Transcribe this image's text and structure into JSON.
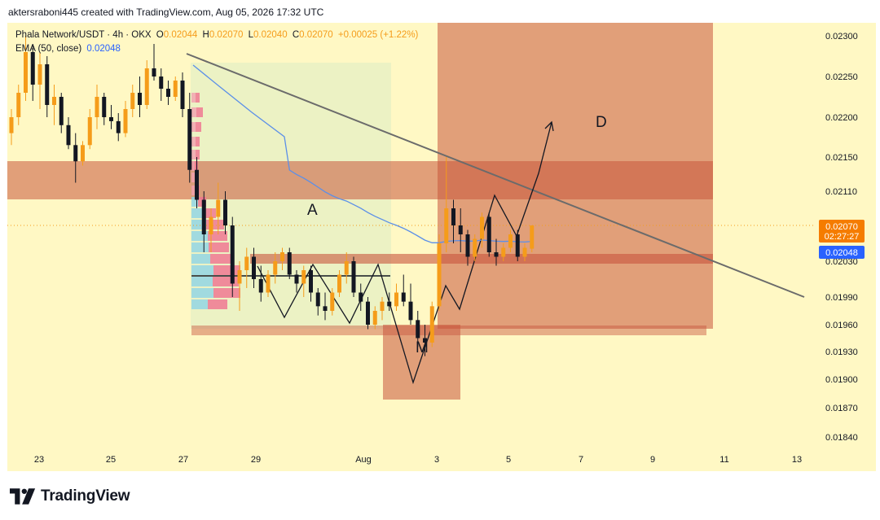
{
  "header": {
    "attribution": "aktersraboni445 created with TradingView.com, Aug 05, 2026 17:32 UTC"
  },
  "legend": {
    "symbol": "Phala Network/USDT · 4h · OKX",
    "o_label": "O",
    "o_value": "0.02044",
    "h_label": "H",
    "h_value": "0.02070",
    "l_label": "L",
    "l_value": "0.02040",
    "c_label": "C",
    "c_value": "0.02070",
    "change": "+0.00025 (+1.22%)",
    "ema_label": "EMA (50, close)",
    "ema_value": "0.02048"
  },
  "footer": {
    "brand": "TradingView"
  },
  "colors": {
    "background": "#fff8c4",
    "up": "#f59c1a",
    "down": "#131722",
    "ema": "#5b8fe8",
    "zone": "#c8553d",
    "price_tag": "#f57c00",
    "ema_tag": "#2962ff"
  },
  "chart_data": {
    "type": "candlestick",
    "y_ticks": [
      "0.02300",
      "0.02250",
      "0.02200",
      "0.02150",
      "0.02110",
      "0.02070",
      "0.02030",
      "0.01990",
      "0.01960",
      "0.01930",
      "0.01900",
      "0.01870",
      "0.01840"
    ],
    "x_ticks": [
      "23",
      "25",
      "27",
      "29",
      "Aug",
      "3",
      "5",
      "7",
      "9",
      "11",
      "13"
    ],
    "last_price": "0.02070",
    "countdown": "02:27:27",
    "ema_last": "0.02048",
    "annotations": [
      "A",
      "M",
      "D"
    ],
    "series": [
      {
        "name": "PHA/USDT 4h",
        "candles": [
          {
            "o": 0.0218,
            "h": 0.0221,
            "l": 0.02165,
            "c": 0.022
          },
          {
            "o": 0.022,
            "h": 0.0224,
            "l": 0.0219,
            "c": 0.0223
          },
          {
            "o": 0.0223,
            "h": 0.023,
            "l": 0.0222,
            "c": 0.0228
          },
          {
            "o": 0.0228,
            "h": 0.0229,
            "l": 0.0222,
            "c": 0.0224
          },
          {
            "o": 0.0224,
            "h": 0.0228,
            "l": 0.0221,
            "c": 0.02265
          },
          {
            "o": 0.02265,
            "h": 0.02275,
            "l": 0.022,
            "c": 0.02215
          },
          {
            "o": 0.02215,
            "h": 0.0224,
            "l": 0.0219,
            "c": 0.02225
          },
          {
            "o": 0.02225,
            "h": 0.0223,
            "l": 0.0218,
            "c": 0.0219
          },
          {
            "o": 0.0219,
            "h": 0.022,
            "l": 0.0216,
            "c": 0.02165
          },
          {
            "o": 0.02165,
            "h": 0.0218,
            "l": 0.0212,
            "c": 0.02145
          },
          {
            "o": 0.02145,
            "h": 0.0217,
            "l": 0.0214,
            "c": 0.02165
          },
          {
            "o": 0.02165,
            "h": 0.0221,
            "l": 0.0216,
            "c": 0.022
          },
          {
            "o": 0.022,
            "h": 0.0224,
            "l": 0.02185,
            "c": 0.02225
          },
          {
            "o": 0.02225,
            "h": 0.0223,
            "l": 0.0219,
            "c": 0.022
          },
          {
            "o": 0.022,
            "h": 0.02215,
            "l": 0.02185,
            "c": 0.02195
          },
          {
            "o": 0.02195,
            "h": 0.02205,
            "l": 0.0217,
            "c": 0.0218
          },
          {
            "o": 0.0218,
            "h": 0.0222,
            "l": 0.02175,
            "c": 0.0221
          },
          {
            "o": 0.0221,
            "h": 0.0224,
            "l": 0.022,
            "c": 0.0223
          },
          {
            "o": 0.0223,
            "h": 0.0225,
            "l": 0.022,
            "c": 0.02215
          },
          {
            "o": 0.02215,
            "h": 0.0227,
            "l": 0.0221,
            "c": 0.0226
          },
          {
            "o": 0.0226,
            "h": 0.0229,
            "l": 0.02245,
            "c": 0.0225
          },
          {
            "o": 0.0225,
            "h": 0.0226,
            "l": 0.0222,
            "c": 0.02235
          },
          {
            "o": 0.02235,
            "h": 0.02245,
            "l": 0.02215,
            "c": 0.02225
          },
          {
            "o": 0.02225,
            "h": 0.0225,
            "l": 0.0222,
            "c": 0.02245
          },
          {
            "o": 0.02245,
            "h": 0.02255,
            "l": 0.022,
            "c": 0.0221
          },
          {
            "o": 0.0221,
            "h": 0.0223,
            "l": 0.0212,
            "c": 0.02135
          },
          {
            "o": 0.02135,
            "h": 0.0215,
            "l": 0.0209,
            "c": 0.021
          },
          {
            "o": 0.021,
            "h": 0.0211,
            "l": 0.0204,
            "c": 0.0206
          },
          {
            "o": 0.0206,
            "h": 0.0209,
            "l": 0.0204,
            "c": 0.0208
          },
          {
            "o": 0.0208,
            "h": 0.0212,
            "l": 0.0206,
            "c": 0.021
          },
          {
            "o": 0.021,
            "h": 0.0211,
            "l": 0.0206,
            "c": 0.0207
          },
          {
            "o": 0.0207,
            "h": 0.0208,
            "l": 0.0199,
            "c": 0.02005
          },
          {
            "o": 0.02005,
            "h": 0.0203,
            "l": 0.01975,
            "c": 0.0202
          },
          {
            "o": 0.0202,
            "h": 0.02045,
            "l": 0.02,
            "c": 0.02035
          },
          {
            "o": 0.02035,
            "h": 0.02045,
            "l": 0.02,
            "c": 0.0201
          },
          {
            "o": 0.0201,
            "h": 0.02025,
            "l": 0.01985,
            "c": 0.01995
          },
          {
            "o": 0.01995,
            "h": 0.0202,
            "l": 0.0199,
            "c": 0.02015
          },
          {
            "o": 0.02015,
            "h": 0.0204,
            "l": 0.02005,
            "c": 0.0203
          },
          {
            "o": 0.0203,
            "h": 0.02045,
            "l": 0.0202,
            "c": 0.0204
          },
          {
            "o": 0.0204,
            "h": 0.02045,
            "l": 0.0201,
            "c": 0.02015
          },
          {
            "o": 0.02015,
            "h": 0.0202,
            "l": 0.01995,
            "c": 0.02005
          },
          {
            "o": 0.02005,
            "h": 0.02025,
            "l": 0.0199,
            "c": 0.0202
          },
          {
            "o": 0.0202,
            "h": 0.02025,
            "l": 0.01985,
            "c": 0.01995
          },
          {
            "o": 0.01995,
            "h": 0.02,
            "l": 0.0197,
            "c": 0.0198
          },
          {
            "o": 0.0198,
            "h": 0.01995,
            "l": 0.01965,
            "c": 0.01975
          },
          {
            "o": 0.01975,
            "h": 0.02,
            "l": 0.0197,
            "c": 0.01995
          },
          {
            "o": 0.01995,
            "h": 0.0202,
            "l": 0.0199,
            "c": 0.02015
          },
          {
            "o": 0.02015,
            "h": 0.0204,
            "l": 0.02005,
            "c": 0.0203
          },
          {
            "o": 0.0203,
            "h": 0.02035,
            "l": 0.0199,
            "c": 0.01995
          },
          {
            "o": 0.01995,
            "h": 0.02005,
            "l": 0.01975,
            "c": 0.01985
          },
          {
            "o": 0.01985,
            "h": 0.0199,
            "l": 0.01955,
            "c": 0.0196
          },
          {
            "o": 0.0196,
            "h": 0.0198,
            "l": 0.01955,
            "c": 0.01975
          },
          {
            "o": 0.01975,
            "h": 0.0199,
            "l": 0.01965,
            "c": 0.01985
          },
          {
            "o": 0.01985,
            "h": 0.01995,
            "l": 0.01975,
            "c": 0.0198
          },
          {
            "o": 0.0198,
            "h": 0.02005,
            "l": 0.01975,
            "c": 0.01995
          },
          {
            "o": 0.01995,
            "h": 0.02015,
            "l": 0.0198,
            "c": 0.01985
          },
          {
            "o": 0.01985,
            "h": 0.02005,
            "l": 0.0196,
            "c": 0.01965
          },
          {
            "o": 0.01965,
            "h": 0.01975,
            "l": 0.01935,
            "c": 0.01945
          },
          {
            "o": 0.01945,
            "h": 0.0196,
            "l": 0.01925,
            "c": 0.0194
          },
          {
            "o": 0.0194,
            "h": 0.01985,
            "l": 0.01935,
            "c": 0.0198
          },
          {
            "o": 0.0198,
            "h": 0.0206,
            "l": 0.01975,
            "c": 0.0205
          },
          {
            "o": 0.0205,
            "h": 0.0215,
            "l": 0.0204,
            "c": 0.0209
          },
          {
            "o": 0.0209,
            "h": 0.021,
            "l": 0.0205,
            "c": 0.0207
          },
          {
            "o": 0.0207,
            "h": 0.0209,
            "l": 0.0204,
            "c": 0.0206
          },
          {
            "o": 0.0206,
            "h": 0.02065,
            "l": 0.02025,
            "c": 0.02035
          },
          {
            "o": 0.02035,
            "h": 0.0206,
            "l": 0.0203,
            "c": 0.02055
          },
          {
            "o": 0.02055,
            "h": 0.02085,
            "l": 0.02045,
            "c": 0.0208
          },
          {
            "o": 0.0208,
            "h": 0.02085,
            "l": 0.02035,
            "c": 0.0204
          },
          {
            "o": 0.0204,
            "h": 0.02055,
            "l": 0.02025,
            "c": 0.02035
          },
          {
            "o": 0.02035,
            "h": 0.0205,
            "l": 0.0203,
            "c": 0.02045
          },
          {
            "o": 0.02045,
            "h": 0.02065,
            "l": 0.0204,
            "c": 0.0206
          },
          {
            "o": 0.0206,
            "h": 0.02065,
            "l": 0.0203,
            "c": 0.02035
          },
          {
            "o": 0.02035,
            "h": 0.0205,
            "l": 0.0203,
            "c": 0.02045
          },
          {
            "o": 0.02044,
            "h": 0.0207,
            "l": 0.0204,
            "c": 0.0207
          }
        ]
      }
    ]
  }
}
